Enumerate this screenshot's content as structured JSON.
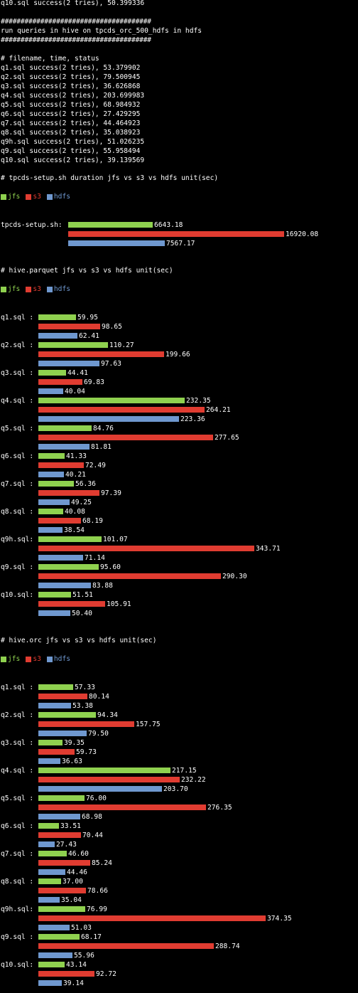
{
  "colors": {
    "jfs": "#8fd14f",
    "s3": "#e03c31",
    "hdfs": "#6f98cf"
  },
  "top_lines": [
    "q10.sql success(2 tries), 50.399336",
    "",
    "######################################",
    "run queries in hive on tpcds_orc_500_hdfs in hdfs",
    "######################################",
    "",
    "# filename, time, status",
    "q1.sql success(2 tries), 53.379902",
    "q2.sql success(2 tries), 79.500945",
    "q3.sql success(2 tries), 36.626868",
    "q4.sql success(2 tries), 203.699983",
    "q5.sql success(2 tries), 68.984932",
    "q6.sql success(2 tries), 27.429295",
    "q7.sql success(2 tries), 44.464923",
    "q8.sql success(2 tries), 35.038923",
    "q9h.sql success(2 tries), 51.026235",
    "q9.sql success(2 tries), 55.958494",
    "q10.sql success(2 tries), 39.139569"
  ],
  "legend": [
    "jfs",
    "s3",
    "hdfs"
  ],
  "chart_data": [
    {
      "type": "bar",
      "title": "# tpcds-setup.sh duration jfs vs s3 vs hdfs unit(sec)",
      "categories": [
        "tpcds-setup.sh:"
      ],
      "series": [
        {
          "name": "jfs",
          "values": [
            6643.18
          ]
        },
        {
          "name": "s3",
          "values": [
            16920.08
          ]
        },
        {
          "name": "hdfs",
          "values": [
            7567.17
          ]
        }
      ],
      "labels": {
        "jfs": [
          "6643.18"
        ],
        "s3": [
          "16920.08"
        ],
        "hdfs": [
          "7567.17"
        ]
      }
    },
    {
      "type": "bar",
      "title": "# hive.parquet jfs vs s3 vs hdfs unit(sec)",
      "categories": [
        "q1.sql :",
        "q2.sql :",
        "q3.sql :",
        "q4.sql :",
        "q5.sql :",
        "q6.sql :",
        "q7.sql :",
        "q8.sql :",
        "q9h.sql:",
        "q9.sql :",
        "q10.sql:"
      ],
      "series": [
        {
          "name": "jfs",
          "values": [
            59.95,
            110.27,
            44.41,
            232.35,
            84.76,
            41.33,
            56.36,
            40.08,
            101.07,
            95.6,
            51.51
          ]
        },
        {
          "name": "s3",
          "values": [
            98.65,
            199.66,
            69.83,
            264.21,
            277.65,
            72.49,
            97.39,
            68.19,
            343.71,
            290.3,
            105.91
          ]
        },
        {
          "name": "hdfs",
          "values": [
            62.41,
            97.63,
            40.04,
            223.36,
            81.81,
            40.21,
            49.25,
            38.54,
            71.14,
            83.88,
            50.4
          ]
        }
      ],
      "labels": {
        "jfs": [
          "59.95",
          "110.27",
          "44.41",
          "232.35",
          "84.76",
          "41.33",
          "56.36",
          "40.08",
          "101.07",
          "95.60",
          "51.51"
        ],
        "s3": [
          "98.65",
          "199.66",
          "69.83",
          "264.21",
          "277.65",
          "72.49",
          "97.39",
          "68.19",
          "343.71",
          "290.30",
          "105.91"
        ],
        "hdfs": [
          "62.41",
          "97.63",
          "40.04",
          "223.36",
          "81.81",
          "40.21",
          "49.25",
          "38.54",
          "71.14",
          "83.88",
          "50.40"
        ]
      }
    },
    {
      "type": "bar",
      "title": "# hive.orc jfs vs s3 vs hdfs unit(sec)",
      "categories": [
        "q1.sql :",
        "q2.sql :",
        "q3.sql :",
        "q4.sql :",
        "q5.sql :",
        "q6.sql :",
        "q7.sql :",
        "q8.sql :",
        "q9h.sql:",
        "q9.sql :",
        "q10.sql:"
      ],
      "series": [
        {
          "name": "jfs",
          "values": [
            57.33,
            94.34,
            39.35,
            217.15,
            76.0,
            33.51,
            46.6,
            37.0,
            76.99,
            68.17,
            43.14
          ]
        },
        {
          "name": "s3",
          "values": [
            80.14,
            157.75,
            59.73,
            232.22,
            276.35,
            70.44,
            85.24,
            78.66,
            374.35,
            288.74,
            92.72
          ]
        },
        {
          "name": "hdfs",
          "values": [
            53.38,
            79.5,
            36.63,
            203.7,
            68.98,
            27.43,
            44.46,
            35.04,
            51.03,
            55.96,
            39.14
          ]
        }
      ],
      "labels": {
        "jfs": [
          "57.33",
          "94.34",
          "39.35",
          "217.15",
          "76.00",
          "33.51",
          "46.60",
          "37.00",
          "76.99",
          "68.17",
          "43.14"
        ],
        "s3": [
          "80.14",
          "157.75",
          "59.73",
          "232.22",
          "276.35",
          "70.44",
          "85.24",
          "78.66",
          "374.35",
          "288.74",
          "92.72"
        ],
        "hdfs": [
          "53.38",
          "79.50",
          "36.63",
          "203.70",
          "68.98",
          "27.43",
          "44.46",
          "35.04",
          "51.03",
          "55.96",
          "39.14"
        ]
      }
    }
  ]
}
